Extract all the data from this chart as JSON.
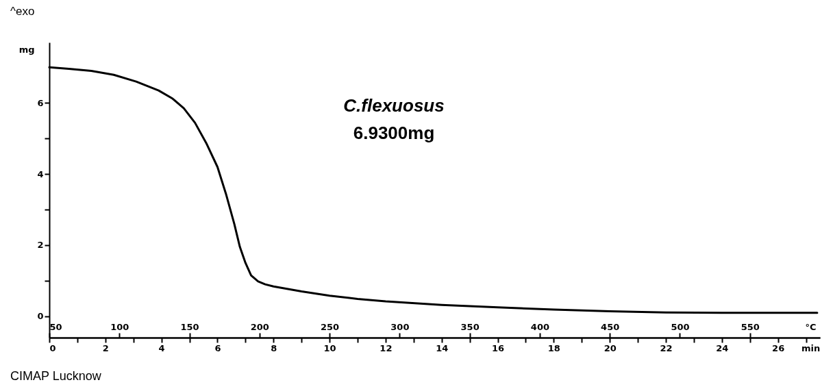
{
  "chart_data": {
    "type": "line",
    "title": "^exo",
    "xlabel": "min",
    "x2label": "°C",
    "ylabel": "mg",
    "annotations": [
      "C.flexuosus",
      "6.9300mg",
      "CIMAP Lucknow"
    ],
    "x": [
      0,
      0.7,
      1.5,
      2.3,
      3.1,
      3.9,
      4.4,
      4.8,
      5.2,
      5.6,
      6.0,
      6.3,
      6.6,
      6.8,
      7.0,
      7.2,
      7.45,
      7.7,
      8.0,
      9,
      10,
      11,
      12,
      14,
      16,
      18,
      20,
      22,
      24,
      26,
      27.4
    ],
    "series": [
      {
        "color": "#000000",
        "values": [
          7.0,
          6.96,
          6.9,
          6.79,
          6.6,
          6.35,
          6.12,
          5.85,
          5.44,
          4.87,
          4.2,
          3.45,
          2.6,
          1.95,
          1.5,
          1.15,
          0.98,
          0.9,
          0.84,
          0.7,
          0.58,
          0.49,
          0.42,
          0.32,
          0.25,
          0.19,
          0.14,
          0.11,
          0.1,
          0.1,
          0.1
        ]
      }
    ],
    "xlim": [
      0,
      27.5
    ],
    "xticks": [
      0,
      {
        "value": 1,
        "label": null
      },
      2,
      {
        "value": 3,
        "label": null
      },
      4,
      {
        "value": 5,
        "label": null
      },
      6,
      {
        "value": 7,
        "label": null
      },
      8,
      {
        "value": 9,
        "label": null
      },
      10,
      {
        "value": 11,
        "label": null
      },
      12,
      {
        "value": 13,
        "label": null
      },
      14,
      {
        "value": 15,
        "label": null
      },
      16,
      {
        "value": 17,
        "label": null
      },
      18,
      {
        "value": 19,
        "label": null
      },
      20,
      {
        "value": 21,
        "label": null
      },
      22,
      {
        "value": 23,
        "label": null
      },
      24,
      {
        "value": 25,
        "label": null
      },
      26,
      {
        "value": 27,
        "label": null
      }
    ],
    "x2lim": [
      50,
      600
    ],
    "x2ticks": [
      50,
      100,
      150,
      200,
      250,
      300,
      350,
      400,
      450,
      500,
      550
    ],
    "ylim": [
      -0.6,
      7.7
    ],
    "yticks": [
      0,
      {
        "value": 1,
        "label": null
      },
      2,
      {
        "value": 3,
        "label": null
      },
      4,
      {
        "value": 5,
        "label": null
      },
      6
    ],
    "grid": false,
    "legend": false,
    "marker": "none",
    "line_style": "solid"
  }
}
